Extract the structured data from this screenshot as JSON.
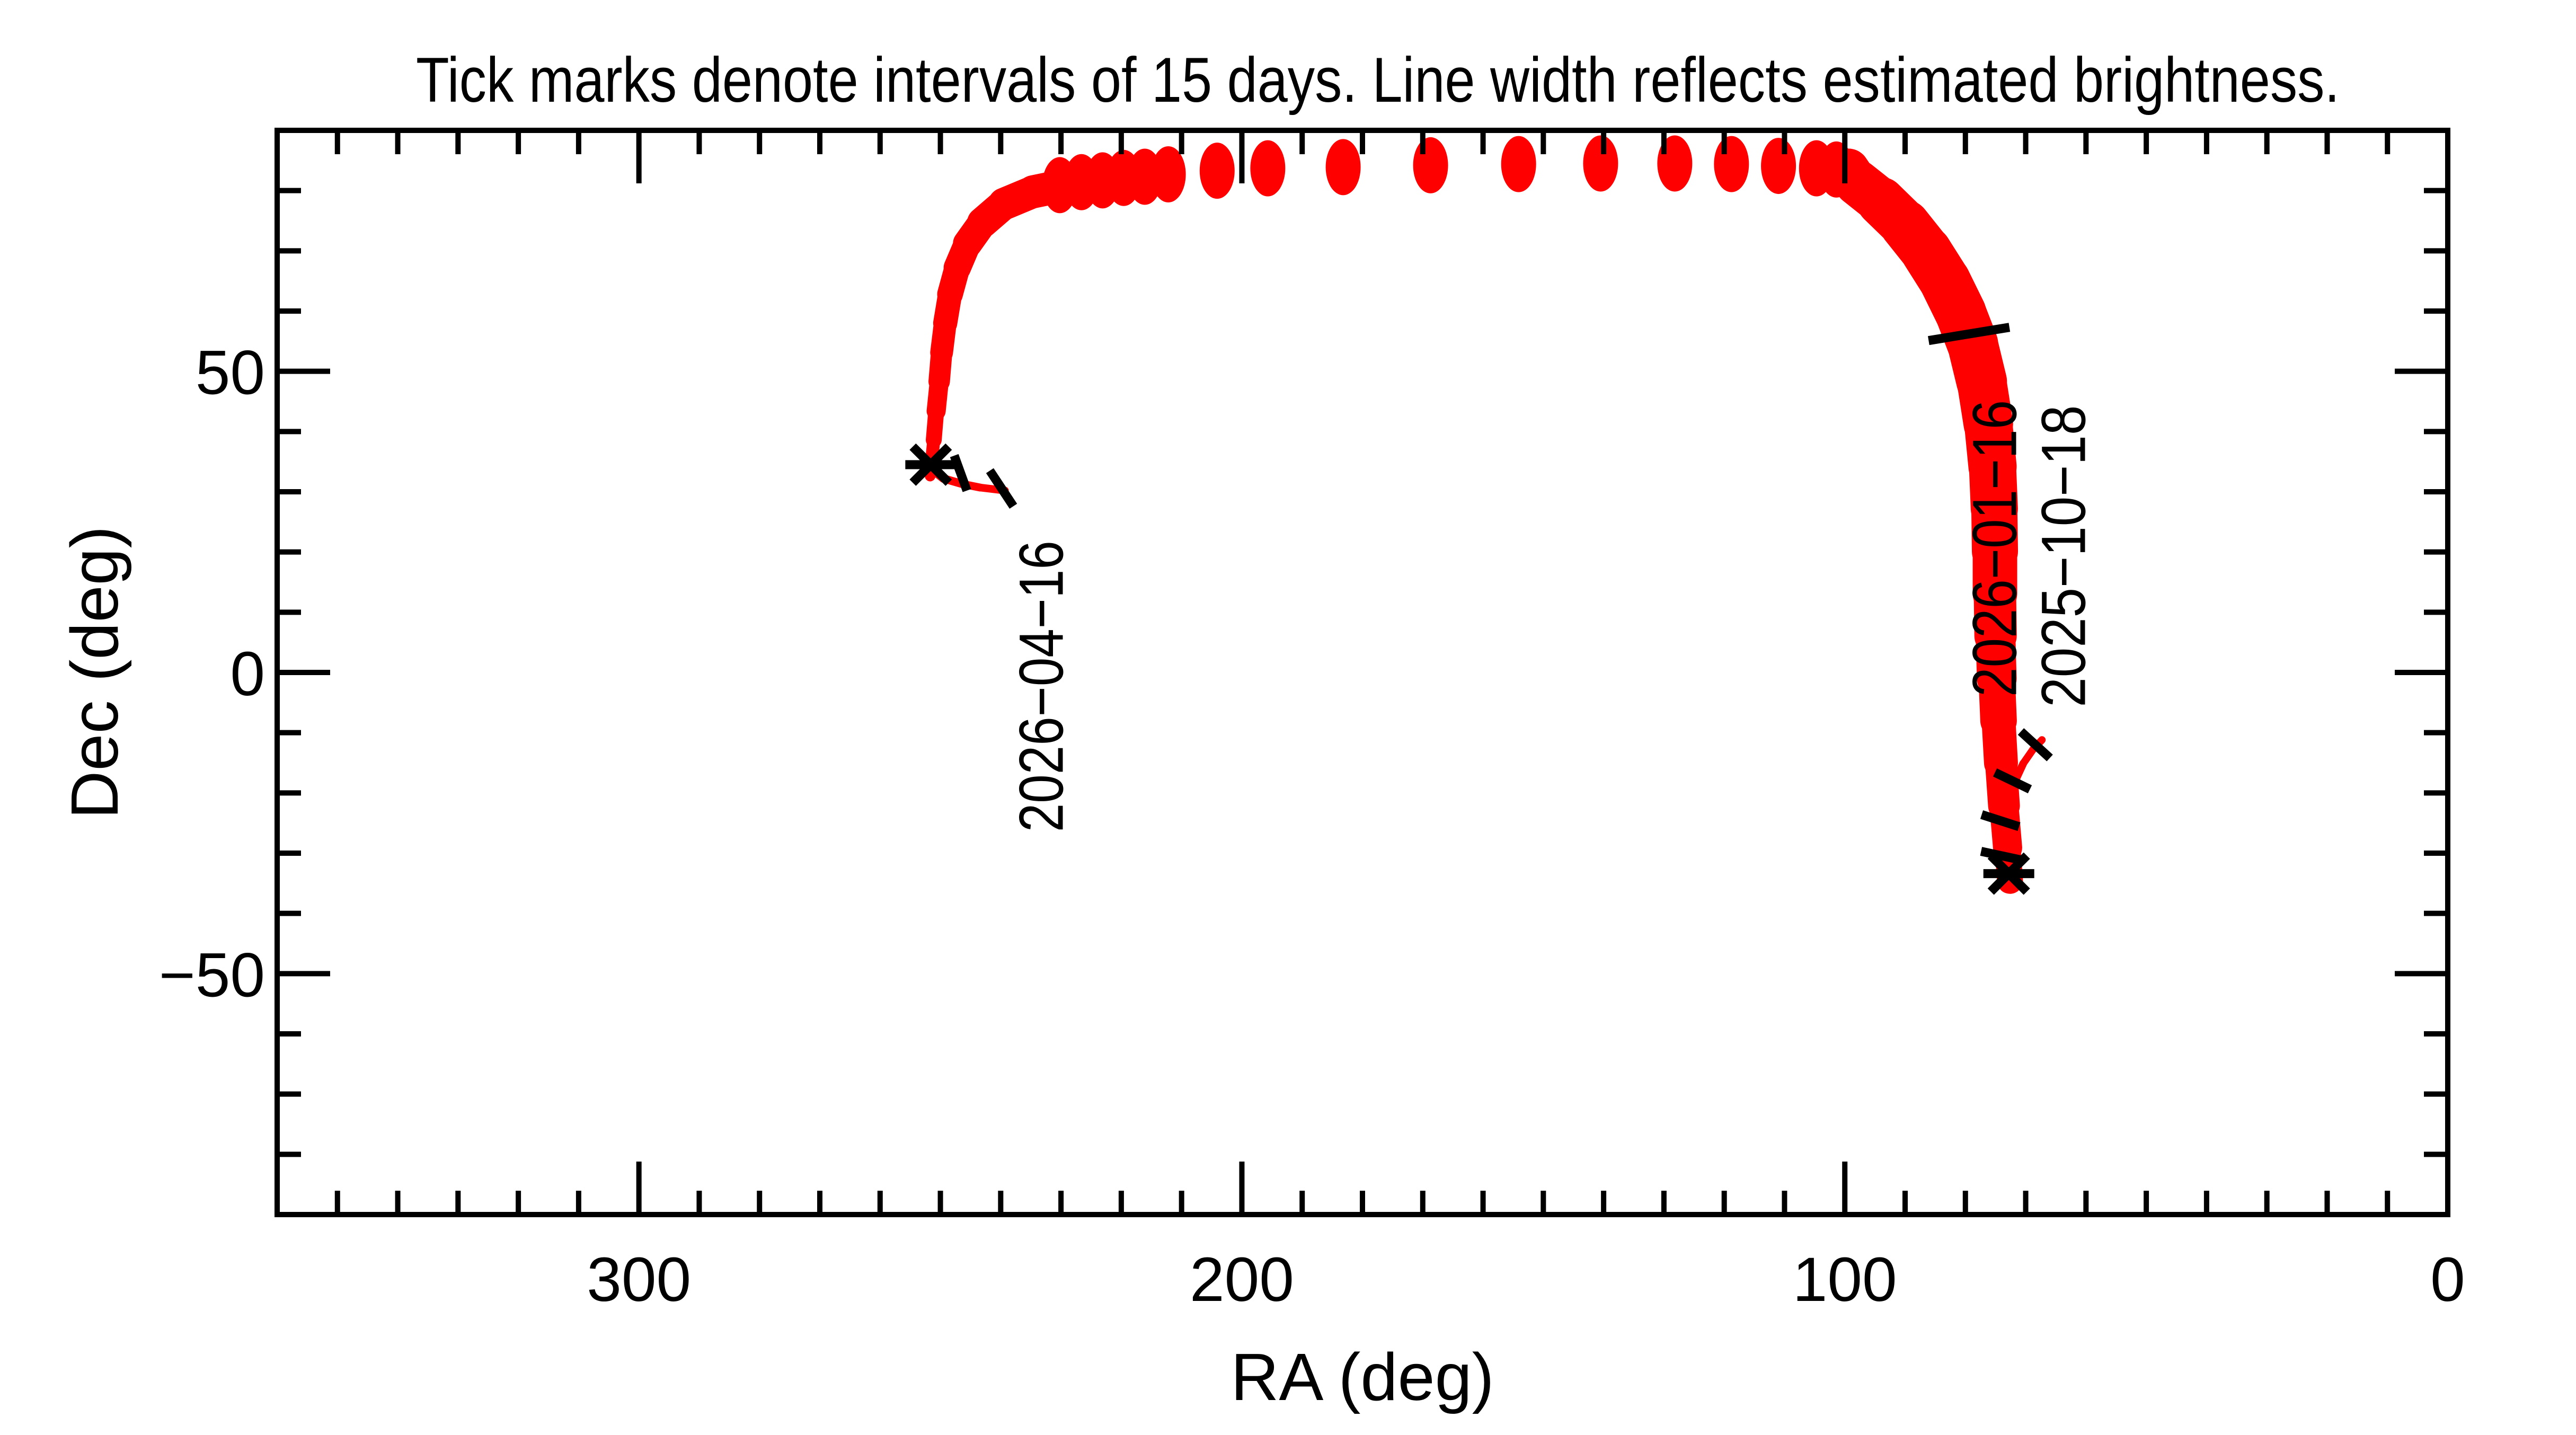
{
  "title": "Tick marks denote intervals of 15 days.  Line width reflects estimated brightness.",
  "colors": {
    "track": "#ff0000",
    "axis": "#000000",
    "background": "#ffffff"
  },
  "axes": {
    "x": {
      "label": "RA (deg)",
      "min": 0,
      "max": 360,
      "reversed": true,
      "major_ticks": [
        300,
        200,
        100,
        0
      ],
      "major_tick_labels": [
        "300",
        "200",
        "100",
        "0"
      ],
      "minor_step": 10
    },
    "y": {
      "label": "Dec (deg)",
      "min": -90,
      "max": 90,
      "major_ticks": [
        50,
        0,
        -50
      ],
      "major_tick_labels": [
        "50",
        "0",
        "−50"
      ],
      "minor_step": 10
    }
  },
  "chart_data": {
    "type": "line",
    "title": "Tick marks denote intervals of 15 days.  Line width reflects estimated brightness.",
    "xlabel": "RA (deg)",
    "ylabel": "Dec (deg)",
    "x_range": [
      360,
      0
    ],
    "y_range": [
      -90,
      90
    ],
    "grid": false,
    "legend": "none",
    "width_encodes": "estimated brightness (track line width in px)",
    "series": [
      {
        "name": "start-branch-2025-10-18",
        "points": [
          [
            67.3,
            -11.2,
            14
          ],
          [
            68.8,
            -12.8,
            14
          ],
          [
            70.4,
            -15.1,
            14
          ],
          [
            71.6,
            -17.7,
            15
          ],
          [
            72.2,
            -19.6,
            16
          ]
        ]
      },
      {
        "name": "main-band-south-to-pole",
        "points": [
          [
            72.6,
            -34.6,
            46
          ],
          [
            73.0,
            -29.1,
            52
          ],
          [
            73.6,
            -22.1,
            58
          ],
          [
            74.1,
            -15.0,
            62
          ],
          [
            74.5,
            -8.0,
            66
          ],
          [
            74.8,
            -1.0,
            72
          ],
          [
            75.0,
            6.1,
            78
          ],
          [
            75.1,
            13.1,
            82
          ],
          [
            75.1,
            20.1,
            86
          ],
          [
            75.2,
            27.2,
            88
          ],
          [
            75.5,
            34.2,
            90
          ],
          [
            76.2,
            41.3,
            92
          ],
          [
            77.3,
            48.3,
            95
          ],
          [
            78.8,
            54.5,
            96
          ],
          [
            80.8,
            59.7,
            97
          ],
          [
            83.4,
            65.0,
            97
          ],
          [
            86.5,
            69.9,
            96
          ],
          [
            90.0,
            74.3,
            94
          ],
          [
            94.0,
            78.2,
            90
          ],
          [
            97.9,
            81.3,
            84
          ],
          [
            99.4,
            83.5,
            74
          ]
        ]
      },
      {
        "name": "west-band-pole-to-end",
        "points": [
          [
            216.1,
            82.3,
            64
          ],
          [
            223.2,
            81.7,
            64
          ],
          [
            229.3,
            80.9,
            63
          ],
          [
            234.6,
            79.8,
            62
          ],
          [
            239.4,
            77.8,
            60
          ],
          [
            243.0,
            74.7,
            57
          ],
          [
            245.5,
            71.2,
            53
          ],
          [
            247.2,
            67.2,
            50
          ],
          [
            248.4,
            62.8,
            47
          ],
          [
            249.2,
            58.0,
            44
          ],
          [
            249.8,
            53.1,
            42
          ],
          [
            250.2,
            48.3,
            39
          ],
          [
            250.7,
            43.4,
            33
          ],
          [
            251.1,
            38.6,
            27
          ],
          [
            251.5,
            34.6,
            22
          ],
          [
            251.7,
            32.6,
            18
          ]
        ]
      },
      {
        "name": "end-tail-2026-04-16",
        "points": [
          [
            251.5,
            33.8,
            16
          ],
          [
            249.5,
            32.2,
            16
          ],
          [
            246.4,
            31.3,
            15
          ],
          [
            243.4,
            30.7,
            15
          ],
          [
            239.3,
            30.2,
            14
          ]
        ]
      }
    ],
    "daily_points": {
      "note": "separated daily positions near the north celestial pole",
      "rx": 33,
      "ry": 53,
      "points": [
        [
          230.2,
          80.9
        ],
        [
          226.6,
          81.4
        ],
        [
          223.1,
          81.7
        ],
        [
          219.6,
          82.1
        ],
        [
          216.1,
          82.3
        ],
        [
          212.2,
          82.7
        ],
        [
          204.1,
          83.3
        ],
        [
          195.7,
          83.7
        ],
        [
          183.2,
          83.9
        ],
        [
          168.7,
          84.2
        ],
        [
          154.1,
          84.4
        ],
        [
          140.5,
          84.5
        ],
        [
          128.2,
          84.5
        ],
        [
          118.8,
          84.4
        ],
        [
          111.0,
          84.1
        ],
        [
          104.7,
          83.7
        ],
        [
          101.4,
          83.5
        ]
      ]
    },
    "interval_ticks": {
      "note": "black slashes every 15 days",
      "segments": [
        {
          "name": "tick-2026-04-01",
          "ra1": 247.7,
          "dec1": 36.0,
          "ra2": 245.6,
          "dec2": 30.2
        },
        {
          "name": "tick-2026-04-16",
          "ra1": 241.8,
          "dec1": 33.5,
          "ra2": 237.9,
          "dec2": 27.6
        },
        {
          "name": "tick-2026-01-16",
          "ra1": 86.1,
          "dec1": 55.1,
          "ra2": 72.7,
          "dec2": 57.3
        },
        {
          "name": "tick-2025-10-18",
          "ra1": 70.8,
          "dec1": -9.8,
          "ra2": 66.0,
          "dec2": -14.2
        },
        {
          "name": "tick-right-a",
          "ra1": 75.1,
          "dec1": -16.6,
          "ra2": 69.3,
          "dec2": -19.4
        },
        {
          "name": "tick-right-b",
          "ra1": 77.3,
          "dec1": -23.6,
          "ra2": 71.1,
          "dec2": -25.6
        },
        {
          "name": "tick-right-c",
          "ra1": 77.4,
          "dec1": -29.7,
          "ra2": 70.9,
          "dec2": -31.1
        }
      ]
    },
    "endpoints": [
      {
        "name": "asterisk-west",
        "ra": 251.6,
        "dec": 34.5
      },
      {
        "name": "asterisk-south",
        "ra": 72.8,
        "dec": -33.4
      }
    ],
    "annotations": [
      {
        "text": "2026−04−16",
        "ra": 233.9,
        "dec": -2.3,
        "rotate": -90,
        "length": 550
      },
      {
        "text": "2026−01−16",
        "ra": 75.8,
        "dec": 20.6,
        "rotate": -90,
        "length": 560
      },
      {
        "text": "2025−10−18",
        "ra": 64.4,
        "dec": 19.3,
        "rotate": -90,
        "length": 570
      }
    ],
    "labeled_dates": [
      {
        "date": "2025-10-18",
        "ra": 67,
        "dec": -12
      },
      {
        "date": "2026-01-16",
        "ra": 79,
        "dec": 56
      },
      {
        "date": "2026-04-16",
        "ra": 239,
        "dec": 30
      }
    ]
  }
}
